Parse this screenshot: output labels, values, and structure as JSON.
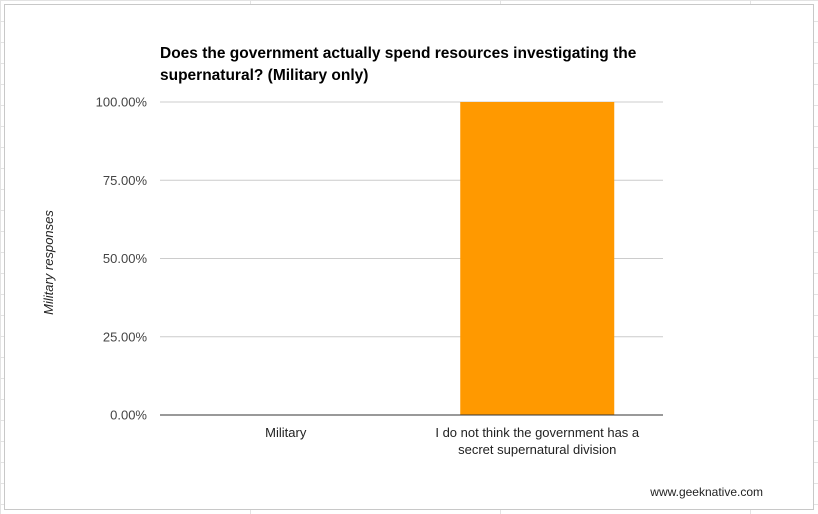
{
  "chart_data": {
    "type": "bar",
    "title": "Does the government actually spend resources investigating the supernatural? (Military only)",
    "xlabel": "",
    "ylabel": "Military responses",
    "categories": [
      "Military",
      "I do not think the government has a secret supernatural division"
    ],
    "category_lines": [
      [
        "Military"
      ],
      [
        "I do not think the government has a",
        "secret supernatural division"
      ]
    ],
    "values": [
      0,
      1.0
    ],
    "ylim": [
      0,
      1.0
    ],
    "yticks": [
      0,
      0.25,
      0.5,
      0.75,
      1.0
    ],
    "ytick_labels": [
      "0.00%",
      "25.00%",
      "50.00%",
      "75.00%",
      "100.00%"
    ],
    "grid": true,
    "legend": "none",
    "bar_color": "#ff9900"
  },
  "footer": {
    "site": "www.geeknative.com"
  },
  "colors": {
    "bar": "#ff9900",
    "gridline": "#cccccc",
    "axis": "#333333",
    "tick_text": "#444444"
  }
}
